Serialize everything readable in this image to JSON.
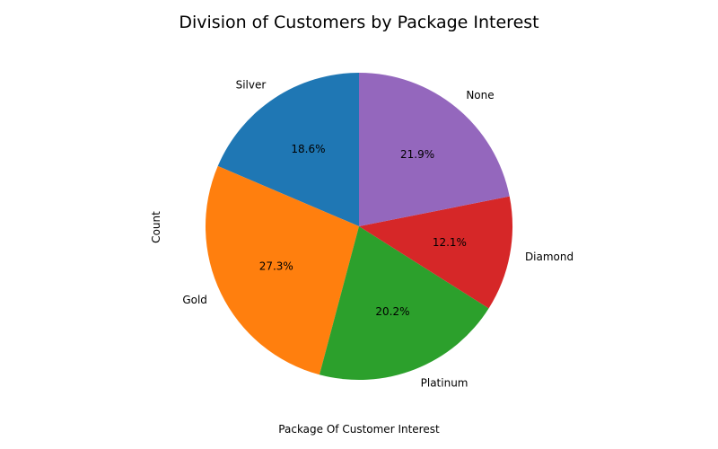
{
  "chart_data": {
    "type": "pie",
    "title": "Division of Customers by Package Interest",
    "xlabel": "Package Of Customer Interest",
    "ylabel": "Count",
    "categories": [
      "Silver",
      "Gold",
      "Platinum",
      "Diamond",
      "None"
    ],
    "values": [
      18.6,
      27.3,
      20.2,
      12.1,
      21.9
    ],
    "percent_labels": [
      "18.6%",
      "27.3%",
      "20.2%",
      "12.1%",
      "21.9%"
    ],
    "colors": [
      "#1f77b4",
      "#ff7f0e",
      "#2ca02c",
      "#d62728",
      "#9467bd"
    ],
    "start_angle": 90,
    "direction": "counterclockwise",
    "legend": "none"
  }
}
